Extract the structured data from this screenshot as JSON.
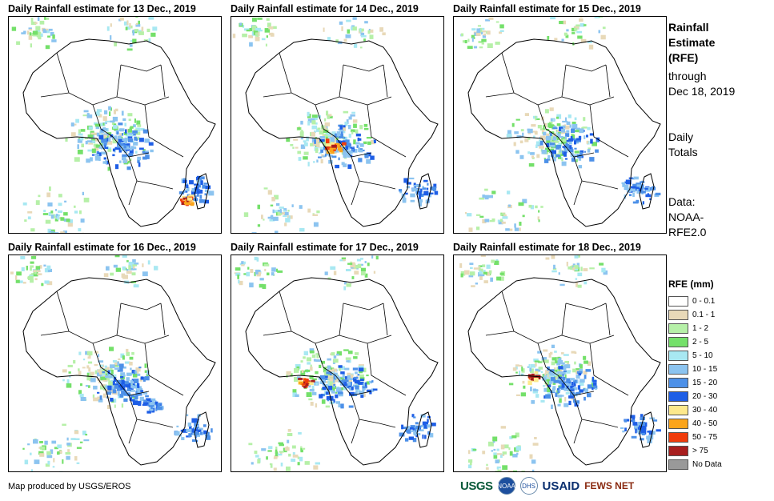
{
  "panels": [
    {
      "title": "Daily Rainfall estimate for 13 Dec., 2019"
    },
    {
      "title": "Daily Rainfall estimate for 14 Dec., 2019"
    },
    {
      "title": "Daily Rainfall estimate for 15 Dec., 2019"
    },
    {
      "title": "Daily Rainfall estimate for 16 Dec., 2019"
    },
    {
      "title": "Daily Rainfall estimate for 17 Dec., 2019"
    },
    {
      "title": "Daily Rainfall estimate for 18 Dec., 2019"
    }
  ],
  "side": {
    "title_line1": "Rainfall",
    "title_line2": "Estimate",
    "title_line3": "(RFE)",
    "through_line1": "through",
    "through_line2": "Dec 18, 2019",
    "daily_line1": "Daily",
    "daily_line2": "Totals",
    "data_line1": "Data:",
    "data_line2": "NOAA-",
    "data_line3": "RFE2.0"
  },
  "legend": {
    "title": "RFE (mm)",
    "items": [
      {
        "label": "0 - 0.1",
        "color": "#ffffff"
      },
      {
        "label": "0.1 - 1",
        "color": "#e8d9b8"
      },
      {
        "label": "1 - 2",
        "color": "#b6f0a8"
      },
      {
        "label": "2 - 5",
        "color": "#74e06a"
      },
      {
        "label": "5 - 10",
        "color": "#a8e8f2"
      },
      {
        "label": "10 - 15",
        "color": "#8cc4f0"
      },
      {
        "label": "15 - 20",
        "color": "#4c90e8"
      },
      {
        "label": "20 - 30",
        "color": "#1e5ee6"
      },
      {
        "label": "30 - 40",
        "color": "#fde98c"
      },
      {
        "label": "40 - 50",
        "color": "#fba51c"
      },
      {
        "label": "50 - 75",
        "color": "#f03c0c"
      },
      {
        "label": "> 75",
        "color": "#a81e1e"
      },
      {
        "label": "No Data",
        "color": "#999999"
      }
    ]
  },
  "footer": {
    "credit": "Map produced by USGS/EROS",
    "logo_usgs": "USGS",
    "logo_noaa": "NOAA",
    "logo_dhs": "DHS",
    "logo_usaid": "USAID",
    "logo_fews": "FEWS NET"
  }
}
